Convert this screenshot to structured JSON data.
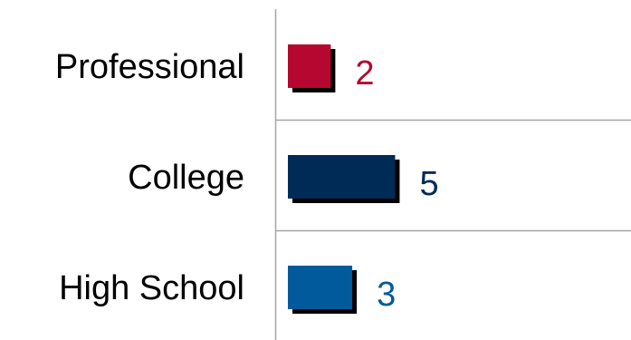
{
  "chart_data": {
    "type": "bar",
    "orientation": "horizontal",
    "categories": [
      "Professional",
      "College",
      "High School"
    ],
    "values": [
      2,
      5,
      3
    ],
    "colors": [
      "#b5072f",
      "#002b56",
      "#005a9c"
    ],
    "shadow_color": "#000000",
    "grid_color": "#a6a6a6",
    "xlim": [
      0,
      16
    ],
    "data_labels": true,
    "legend": "none",
    "title": "",
    "xlabel": "",
    "ylabel": ""
  }
}
